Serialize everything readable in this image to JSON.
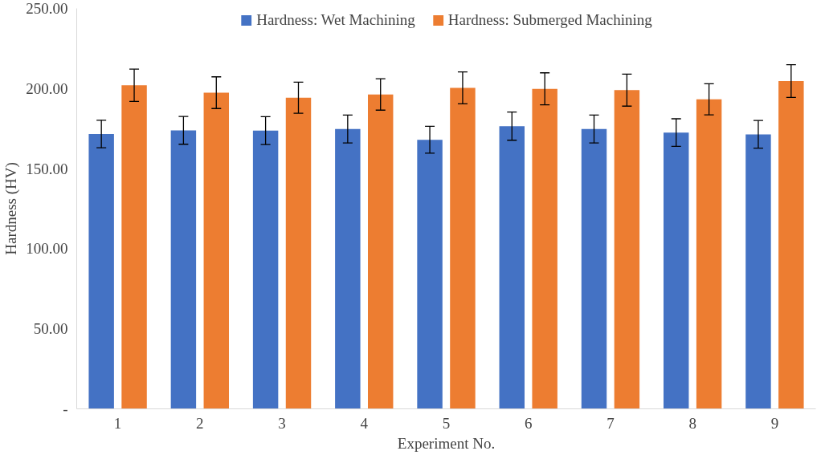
{
  "chart_data": {
    "type": "bar",
    "xlabel": "Experiment No.",
    "ylabel": "Hardness (HV)",
    "categories": [
      "1",
      "2",
      "3",
      "4",
      "5",
      "6",
      "7",
      "8",
      "9"
    ],
    "series": [
      {
        "name": "Hardness: Wet Machining",
        "color": "#4472c4",
        "values": [
          171.6,
          173.9,
          173.7,
          174.7,
          168.0,
          176.5,
          174.7,
          172.5,
          171.4
        ],
        "errors": [
          8.6,
          8.7,
          8.7,
          8.7,
          8.4,
          8.8,
          8.7,
          8.6,
          8.6
        ]
      },
      {
        "name": "Hardness: Submerged Machining",
        "color": "#ed7d31",
        "values": [
          202.0,
          197.4,
          194.3,
          196.3,
          200.4,
          199.8,
          199.0,
          193.3,
          204.7
        ],
        "errors": [
          10.1,
          9.9,
          9.7,
          9.8,
          10.0,
          10.0,
          10.0,
          9.7,
          10.2
        ]
      }
    ],
    "ylim": [
      0,
      250
    ],
    "yticks": [
      {
        "value": 0,
        "label": "-"
      },
      {
        "value": 50,
        "label": "50.00"
      },
      {
        "value": 100,
        "label": "100.00"
      },
      {
        "value": 150,
        "label": "150.00"
      },
      {
        "value": 200,
        "label": "200.00"
      },
      {
        "value": 250,
        "label": "250.00"
      }
    ],
    "grid": false,
    "legend": "top"
  }
}
